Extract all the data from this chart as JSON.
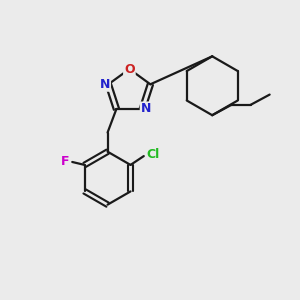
{
  "background_color": "#ebebeb",
  "bond_color": "#1a1a1a",
  "bond_width": 1.6,
  "figsize": [
    3.0,
    3.0
  ],
  "dpi": 100,
  "atoms": {
    "N_blue_color": "#2222cc",
    "O_red_color": "#cc2222",
    "F_magenta_color": "#cc00cc",
    "Cl_green_color": "#22bb22"
  },
  "xlim": [
    0,
    10
  ],
  "ylim": [
    0,
    10
  ]
}
